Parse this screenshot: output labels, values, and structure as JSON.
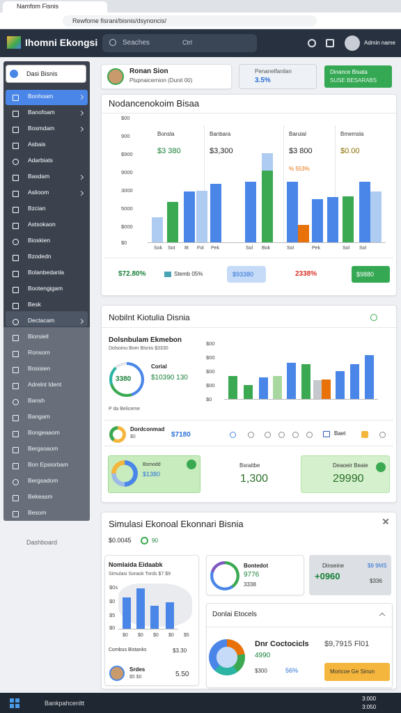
{
  "browser": {
    "tab": "Namfom Fisnis",
    "url": "Rewfome fisrani/bisnis/dsynoncis/"
  },
  "header": {
    "brand": "Ihomni Ekongsi",
    "search": "Seaches",
    "search_key": "Ctrl",
    "user": "Admin name"
  },
  "sidebar": {
    "selector": "Dasi Bisnis",
    "items": [
      "Bonhoam",
      "Banofoam",
      "Bosmdam",
      "Asbais",
      "Adarbiats",
      "Basdam",
      "Aslioom",
      "Bzcian",
      "Astsokaon",
      "Bioskien",
      "Bzodedn",
      "Bolanbedanla",
      "Bootengigam",
      "Besk",
      "Dectacam",
      "Biorsiell",
      "Ronsom",
      "Bosisien",
      "Adrelnt Ident",
      "Bansh",
      "Bangam",
      "Bongeaaom",
      "Bergsoaom",
      "Bon Epsiorbam",
      "Bergsadom",
      "Bekeasm",
      "Besom"
    ],
    "footer": "Dashboard"
  },
  "top_cards": {
    "profile_name": "Ronan Sion",
    "profile_sub": "Plupnaicernion (Dunit 00)",
    "stat_label": "Penanelfanilan",
    "stat_value": "3.5%",
    "button_title": "Dinance Bisata",
    "button_sub": "SUSE BESARABS"
  },
  "overview": {
    "title": "Nodancenokoim Bisaa",
    "columns": [
      {
        "label": "Bonsla",
        "value": "$3 380"
      },
      {
        "label": "Banbara",
        "value": "$3,300"
      },
      {
        "label": "Baruial",
        "value": "$3 800"
      },
      {
        "label": "Bmemsla",
        "value": "$0.00"
      }
    ],
    "note": "% 553%",
    "y_labels": [
      "$00",
      "900",
      "$900",
      "9000",
      "3000",
      "5000",
      "$000",
      "$0"
    ],
    "x_labels": [
      "Sok",
      "Sot",
      "8t",
      "Fol",
      "Pek",
      "Sol",
      "Bok",
      "Sol",
      "Pek",
      "Sol",
      "Sol"
    ],
    "ylim": [
      0,
      100
    ],
    "bars": [
      {
        "value": 23,
        "color": "#aecbf2"
      },
      {
        "value": 37,
        "color": "#3ba852"
      },
      {
        "value": 46,
        "color": "#4a86e8"
      },
      {
        "value": 47,
        "color": "#aecbf2"
      },
      {
        "value": 53,
        "color": "#4a86e8"
      },
      {
        "value": 55,
        "color": "#4a86e8"
      },
      {
        "value": 81,
        "color": "#aecbf2"
      },
      {
        "value": 65,
        "color": "#3ba852"
      },
      {
        "value": 55,
        "color": "#4a86e8"
      },
      {
        "value": 16,
        "color": "#e8710a"
      },
      {
        "value": 39,
        "color": "#4a86e8"
      },
      {
        "value": 41,
        "color": "#4a86e8"
      },
      {
        "value": 42,
        "color": "#3ba852"
      },
      {
        "value": 55,
        "color": "#4a86e8"
      },
      {
        "value": 46,
        "color": "#aecbf2"
      }
    ],
    "footer": {
      "growth": "$72.80%",
      "item": "Stemb 05%",
      "pill": "$93380",
      "alert": "2338%",
      "button": "$9880"
    }
  },
  "profit": {
    "title": "Nobilnt Kiotulia Disnia",
    "heading": "Dolsnbulam Ekmebon",
    "sub": "Dolsoinu Bom Bisnis $3330",
    "donut_value": "3380",
    "total_label": "Corial",
    "total_value": "$10390 130",
    "note": "P da Beliceme",
    "y_labels": [
      "$00",
      "$00",
      "$00",
      "$00",
      "$0"
    ],
    "ylim": [
      0,
      100
    ],
    "bars": [
      {
        "value": 41,
        "color": "#3ba852"
      },
      {
        "value": 25,
        "color": "#3ba852"
      },
      {
        "value": 39,
        "color": "#4a86e8"
      },
      {
        "value": 41,
        "color": "#a8d8a0"
      },
      {
        "value": 65,
        "color": "#4a86e8"
      },
      {
        "value": 63,
        "color": "#3ba852"
      },
      {
        "value": 34,
        "color": "#c5c8cc"
      },
      {
        "value": 35,
        "color": "#e8710a"
      },
      {
        "value": 50,
        "color": "#4a86e8"
      },
      {
        "value": 63,
        "color": "#4a86e8"
      },
      {
        "value": 79,
        "color": "#4a86e8"
      }
    ],
    "row": {
      "name": "Dordconmad",
      "sub": "$0",
      "value": "$7180",
      "label": "Baet"
    },
    "cards": [
      {
        "label": "Bsmodd",
        "value": "$1380"
      },
      {
        "label": "Bsraitbe",
        "value": "1,300"
      },
      {
        "label": "Deaoeir Beaie",
        "value": "29990"
      }
    ]
  },
  "simulation": {
    "title": "Simulasi Ekonoal Ekonnari Bisnia",
    "sub_value": "$0.0045",
    "badge": "90",
    "left_card": {
      "heading": "Nomlaida Eidaabk",
      "sub": "Simulasi Soraok Tords $7 $9",
      "y_labels": [
        "$0s",
        "$0",
        "$5",
        "$0"
      ],
      "x_labels": [
        "$0",
        "$0",
        "$0",
        "$0",
        "$5"
      ],
      "ylim": [
        0,
        100
      ],
      "bars": [
        {
          "value": 69,
          "color": "#4a86e8"
        },
        {
          "value": 89,
          "color": "#4a86e8"
        },
        {
          "value": 51,
          "color": "#4a86e8"
        },
        {
          "value": 58,
          "color": "#4a86e8"
        }
      ],
      "combo_label": "Combus Bistanks",
      "combo_value": "$3.30",
      "person": "Srdes",
      "person_sub": "$5 $0",
      "person_value": "5.50"
    },
    "mid_card": {
      "label": "Bontedot",
      "value": "9776",
      "sub": "3338"
    },
    "gray_card": {
      "label": "Dinseine",
      "badge": "$9 9MS",
      "value": "+0960",
      "sub": "$336"
    },
    "bottom_card": {
      "title": "Donlai Etocels",
      "heading": "Dnr Coctocicls",
      "right": "$9,7915 Fl01",
      "value": "4990",
      "sub": "$300",
      "percent": "56%",
      "button": "Moricoe Ge Sinun"
    }
  },
  "taskbar": {
    "search": "Bankpahcenltt",
    "time": "3:000",
    "date": "3:050"
  }
}
